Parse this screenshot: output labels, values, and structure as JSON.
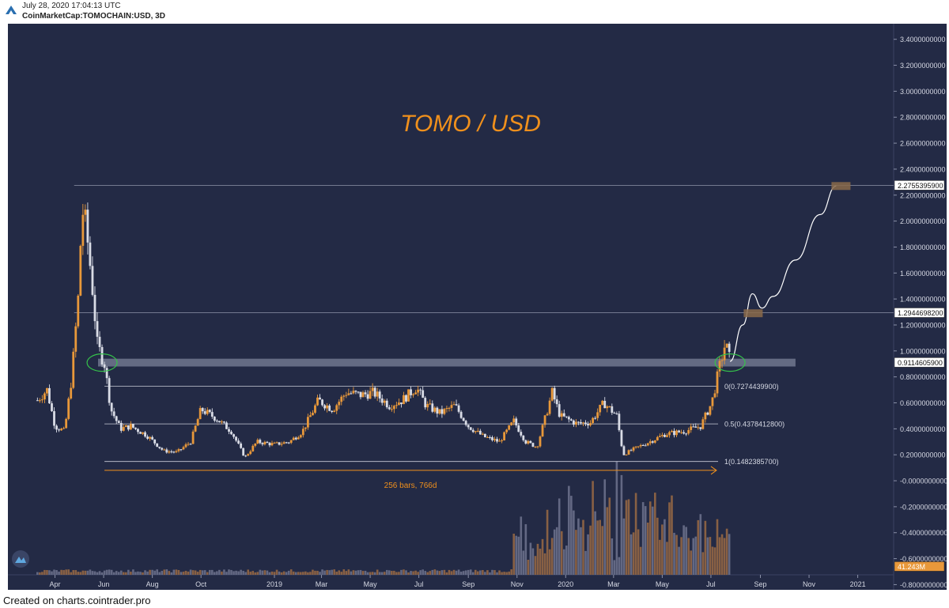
{
  "header": {
    "timestamp": "July 28, 2020 17:04:13 UTC",
    "symbol": "CoinMarketCap:TOMOCHAIN:USD, 3D"
  },
  "footer": {
    "text": "Created on charts.cointrader.pro"
  },
  "colors": {
    "background": "#232a45",
    "up": "#e8983a",
    "down": "#d9dce6",
    "title": "#f0901c",
    "vol_up": "#9a6a44",
    "vol_down": "#6f738e"
  },
  "chart_data": {
    "type": "candlestick",
    "title": "TOMO / USD",
    "y_axis": {
      "range": [
        -0.84,
        3.52
      ],
      "ticks": [
        3.4,
        3.2,
        3.0,
        2.8,
        2.6,
        2.4,
        2.2,
        2.0,
        1.8,
        1.6,
        1.4,
        1.2,
        1.0,
        0.8,
        0.6,
        0.4,
        0.2,
        -0.0,
        -0.2,
        -0.4,
        -0.6,
        -0.8
      ],
      "tick_labels": [
        "3.4000000000",
        "3.2000000000",
        "3.0000000000",
        "2.8000000000",
        "2.6000000000",
        "2.4000000000",
        "2.2000000000",
        "2.0000000000",
        "1.8000000000",
        "1.6000000000",
        "1.4000000000",
        "1.2000000000",
        "1.0000000000",
        "0.8000000000",
        "0.6000000000",
        "0.4000000000",
        "0.2000000000",
        "-0.0000000000",
        "-0.2000000000",
        "-0.4000000000",
        "-0.6000000000",
        "-0.8000000000"
      ]
    },
    "x_axis": {
      "ticks": [
        {
          "label": "Apr",
          "date": "2018-04-01"
        },
        {
          "label": "Jun",
          "date": "2018-06-01"
        },
        {
          "label": "Aug",
          "date": "2018-08-01"
        },
        {
          "label": "Oct",
          "date": "2018-10-01"
        },
        {
          "label": "2019",
          "date": "2019-01-01"
        },
        {
          "label": "Mar",
          "date": "2019-03-01"
        },
        {
          "label": "May",
          "date": "2019-05-01"
        },
        {
          "label": "Jul",
          "date": "2019-07-01"
        },
        {
          "label": "Sep",
          "date": "2019-09-01"
        },
        {
          "label": "Nov",
          "date": "2019-11-01"
        },
        {
          "label": "2020",
          "date": "2020-01-01"
        },
        {
          "label": "Mar",
          "date": "2020-03-01"
        },
        {
          "label": "May",
          "date": "2020-05-01"
        },
        {
          "label": "Jul",
          "date": "2020-07-01"
        },
        {
          "label": "Sep",
          "date": "2020-09-01"
        },
        {
          "label": "Nov",
          "date": "2020-11-01"
        },
        {
          "label": "2021",
          "date": "2021-01-01"
        }
      ]
    },
    "price_path": [
      [
        "2018-03-10",
        0.62
      ],
      [
        "2018-03-22",
        0.7
      ],
      [
        "2018-04-01",
        0.42
      ],
      [
        "2018-04-13",
        0.38
      ],
      [
        "2018-04-22",
        0.8
      ],
      [
        "2018-04-30",
        1.4
      ],
      [
        "2018-05-05",
        2.1
      ],
      [
        "2018-05-10",
        1.95
      ],
      [
        "2018-05-17",
        1.55
      ],
      [
        "2018-05-24",
        1.05
      ],
      [
        "2018-06-02",
        0.9
      ],
      [
        "2018-06-10",
        0.55
      ],
      [
        "2018-06-22",
        0.4
      ],
      [
        "2018-07-05",
        0.42
      ],
      [
        "2018-07-25",
        0.35
      ],
      [
        "2018-08-15",
        0.23
      ],
      [
        "2018-09-01",
        0.22
      ],
      [
        "2018-09-18",
        0.3
      ],
      [
        "2018-10-01",
        0.55
      ],
      [
        "2018-10-20",
        0.48
      ],
      [
        "2018-11-08",
        0.38
      ],
      [
        "2018-11-25",
        0.18
      ],
      [
        "2018-12-10",
        0.3
      ],
      [
        "2019-01-01",
        0.28
      ],
      [
        "2019-01-20",
        0.3
      ],
      [
        "2019-02-05",
        0.38
      ],
      [
        "2019-02-25",
        0.62
      ],
      [
        "2019-03-15",
        0.55
      ],
      [
        "2019-04-01",
        0.68
      ],
      [
        "2019-04-20",
        0.66
      ],
      [
        "2019-05-05",
        0.68
      ],
      [
        "2019-05-25",
        0.58
      ],
      [
        "2019-06-10",
        0.62
      ],
      [
        "2019-06-28",
        0.72
      ],
      [
        "2019-07-10",
        0.58
      ],
      [
        "2019-07-28",
        0.52
      ],
      [
        "2019-08-15",
        0.58
      ],
      [
        "2019-09-01",
        0.42
      ],
      [
        "2019-09-20",
        0.34
      ],
      [
        "2019-10-10",
        0.3
      ],
      [
        "2019-10-28",
        0.46
      ],
      [
        "2019-11-12",
        0.3
      ],
      [
        "2019-11-26",
        0.26
      ],
      [
        "2019-12-08",
        0.52
      ],
      [
        "2019-12-15",
        0.68
      ],
      [
        "2019-12-25",
        0.5
      ],
      [
        "2020-01-15",
        0.44
      ],
      [
        "2020-02-01",
        0.45
      ],
      [
        "2020-02-18",
        0.6
      ],
      [
        "2020-03-05",
        0.5
      ],
      [
        "2020-03-13",
        0.2
      ],
      [
        "2020-03-25",
        0.24
      ],
      [
        "2020-04-15",
        0.3
      ],
      [
        "2020-05-05",
        0.36
      ],
      [
        "2020-05-28",
        0.38
      ],
      [
        "2020-06-18",
        0.42
      ],
      [
        "2020-07-02",
        0.6
      ],
      [
        "2020-07-12",
        0.88
      ],
      [
        "2020-07-19",
        1.06
      ],
      [
        "2020-07-25",
        0.92
      ]
    ],
    "projection": [
      [
        "2020-07-25",
        0.92
      ],
      [
        "2020-08-10",
        1.2
      ],
      [
        "2020-08-22",
        1.44
      ],
      [
        "2020-09-03",
        1.33
      ],
      [
        "2020-09-17",
        1.42
      ],
      [
        "2020-10-15",
        1.7
      ],
      [
        "2020-11-15",
        2.05
      ],
      [
        "2020-12-05",
        2.27
      ]
    ],
    "levels": [
      {
        "value": 2.27553959,
        "label": "2.2755395900",
        "start": "2018-04-25"
      },
      {
        "value": 1.29446982,
        "label": "1.2944698200",
        "start": "2018-04-25"
      }
    ],
    "current_price": {
      "value": 0.91146059,
      "label": "0.9114605900"
    },
    "fib_levels": [
      {
        "value": 0.72744399,
        "label": "0(0.7274439900)"
      },
      {
        "value": 0.43784128,
        "label": "0.5(0.4378412800)"
      },
      {
        "value": 0.14823857,
        "label": "1(0.1482385700)"
      }
    ],
    "fib_range": {
      "start": "2018-06-02",
      "end": "2020-07-10"
    },
    "support_band": {
      "from": 0.88,
      "to": 0.94,
      "start": "2018-05-25",
      "end": "2020-10-15"
    },
    "ellipses": [
      {
        "date": "2018-05-30",
        "value": 0.91
      },
      {
        "date": "2020-07-25",
        "value": 0.91
      }
    ],
    "targets": [
      {
        "date": "2020-08-23",
        "value": 1.29
      },
      {
        "date": "2020-12-11",
        "value": 2.27
      }
    ],
    "measure": {
      "label": "256 bars, 766d",
      "value": 0.08,
      "start": "2018-06-02",
      "end": "2020-07-08"
    },
    "volume_badge": "41.243M"
  }
}
